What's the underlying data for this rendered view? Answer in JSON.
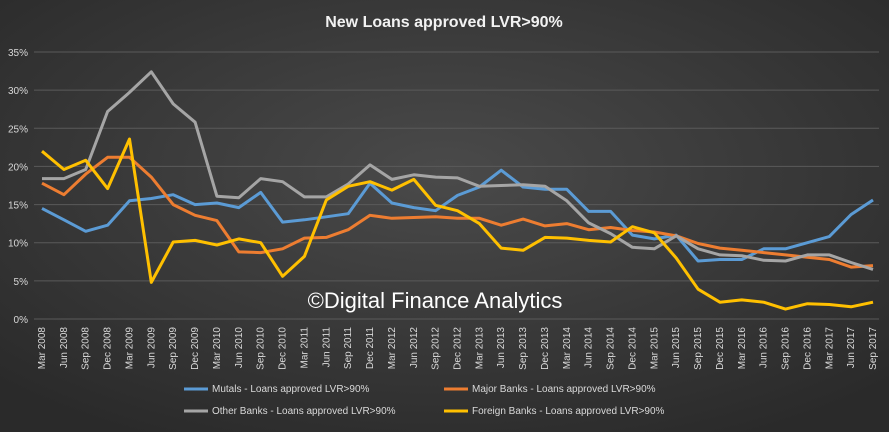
{
  "chart_data": {
    "type": "line",
    "title": "New Loans approved LVR>90%",
    "annotation": "©Digital Finance Analytics",
    "categories": [
      "Mar 2008",
      "Jun 2008",
      "Sep 2008",
      "Dec 2008",
      "Mar 2009",
      "Jun 2009",
      "Sep 2009",
      "Dec 2009",
      "Mar 2010",
      "Jun 2010",
      "Sep 2010",
      "Dec 2010",
      "Mar 2011",
      "Jun 2011",
      "Sep 2011",
      "Dec 2011",
      "Mar 2012",
      "Jun 2012",
      "Sep 2012",
      "Dec 2012",
      "Mar 2013",
      "Jun 2013",
      "Sep 2013",
      "Dec 2013",
      "Mar 2014",
      "Jun 2014",
      "Sep 2014",
      "Dec 2014",
      "Mar 2015",
      "Jun 2015",
      "Sep 2015",
      "Dec 2015",
      "Mar 2016",
      "Jun 2016",
      "Sep 2016",
      "Dec 2016",
      "Mar 2017",
      "Jun 2017",
      "Sep 2017"
    ],
    "series": [
      {
        "name": "Mutals - Loans approved LVR>90%",
        "color": "#5b9bd5",
        "values": [
          14.5,
          13,
          11.5,
          12.3,
          15.5,
          15.8,
          16.3,
          15,
          15.2,
          14.6,
          16.6,
          12.7,
          13,
          13.4,
          13.8,
          17.8,
          15.2,
          14.6,
          14.2,
          16.2,
          17.3,
          19.5,
          17.3,
          17,
          17,
          14.1,
          14.1,
          11,
          10.5,
          11,
          7.6,
          7.8,
          7.8,
          9.2,
          9.2,
          10,
          10.8,
          13.7,
          15.6
        ]
      },
      {
        "name": "Major Banks - Loans approved LVR>90%",
        "color": "#ed7d31",
        "values": [
          17.8,
          16.3,
          19,
          21.2,
          21.2,
          18.6,
          15,
          13.6,
          12.9,
          8.8,
          8.7,
          9.2,
          10.6,
          10.7,
          11.7,
          13.6,
          13.2,
          13.3,
          13.4,
          13.2,
          13.2,
          12.3,
          13.1,
          12.2,
          12.5,
          11.7,
          12,
          11.6,
          11.4,
          10.9,
          9.9,
          9.3,
          9,
          8.7,
          8.4,
          8.1,
          7.8,
          6.8,
          7
        ]
      },
      {
        "name": "Other Banks - Loans approved LVR>90%",
        "color": "#a5a5a5",
        "values": [
          18.4,
          18.4,
          19.6,
          27.2,
          29.7,
          32.4,
          28.2,
          25.8,
          16.1,
          15.9,
          18.4,
          18,
          16,
          16,
          17.7,
          20.2,
          18.3,
          18.9,
          18.6,
          18.5,
          17.4,
          17.5,
          17.6,
          17.4,
          15.5,
          12.6,
          11.2,
          9.4,
          9.2,
          10.9,
          9.2,
          8.4,
          8.3,
          7.7,
          7.6,
          8.4,
          8.4,
          7.4,
          6.5
        ]
      },
      {
        "name": "Foreign Banks - Loans approved LVR>90%",
        "color": "#ffc000",
        "values": [
          22,
          19.6,
          20.8,
          17.1,
          23.6,
          4.8,
          10.1,
          10.3,
          9.7,
          10.5,
          10,
          5.6,
          8.2,
          15.6,
          17.4,
          18,
          16.9,
          18.3,
          14.9,
          14.2,
          12.5,
          9.3,
          9,
          10.7,
          10.6,
          10.3,
          10.1,
          12.1,
          11.3,
          8,
          3.9,
          2.2,
          2.5,
          2.2,
          1.3,
          2,
          1.9,
          1.6,
          2.2
        ]
      }
    ],
    "ylim": [
      0,
      35
    ],
    "yticks": [
      {
        "value": 0,
        "label": "0%"
      },
      {
        "value": 5,
        "label": "5%"
      },
      {
        "value": 10,
        "label": "10%"
      },
      {
        "value": 15,
        "label": "15%"
      },
      {
        "value": 20,
        "label": "20%"
      },
      {
        "value": 25,
        "label": "25%"
      },
      {
        "value": 30,
        "label": "30%"
      },
      {
        "value": 35,
        "label": "35%"
      }
    ],
    "grid": true,
    "legend": "bottom"
  }
}
